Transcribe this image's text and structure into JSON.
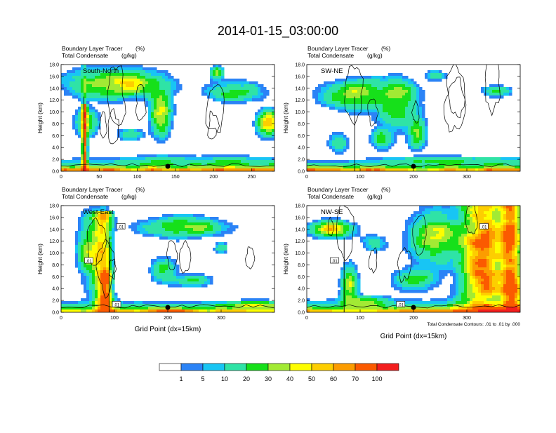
{
  "title": "2014-01-15_03:00:00",
  "colors": {
    "bins": [
      "#ffffff",
      "#2b83f6",
      "#18c5f4",
      "#2fe3a6",
      "#16e01a",
      "#a2ea34",
      "#fdfd00",
      "#fdce00",
      "#fc9c00",
      "#fb5a00",
      "#f31e1e"
    ],
    "contour": "#000000"
  },
  "legend": {
    "labels": [
      "1",
      "5",
      "10",
      "20",
      "30",
      "40",
      "50",
      "60",
      "70",
      "100"
    ]
  },
  "chart_data": [
    {
      "type": "heatmap",
      "field_label": "Boundary Layer Tracer",
      "field_unit": "(%)",
      "contour_label": "Total Condensate",
      "contour_unit": "(g/kg)",
      "panel_label": "South-North",
      "ylabel": "Height (km)",
      "xlabel": "",
      "xlim": [
        0,
        280
      ],
      "ylim": [
        0,
        18
      ],
      "xticks": [
        "0",
        "50",
        "100",
        "150",
        "200",
        "250"
      ],
      "yticks": [
        "0.0",
        "2.0",
        "4.0",
        "6.0",
        "8.0",
        "10.0",
        "12.0",
        "14.0",
        "16.0",
        "18.0"
      ],
      "marker_x": 140,
      "tower_x": 30,
      "contour_values": []
    },
    {
      "type": "heatmap",
      "field_label": "Boundary Layer Tracer",
      "field_unit": "(%)",
      "contour_label": "Total Condensate",
      "contour_unit": "(g/kg)",
      "panel_label": "SW-NE",
      "ylabel": "Height (km)",
      "xlabel": "",
      "xlim": [
        0,
        400
      ],
      "ylim": [
        0,
        18
      ],
      "xticks": [
        "0",
        "100",
        "200",
        "300"
      ],
      "yticks": [
        "0.0",
        "2.0",
        "4.0",
        "6.0",
        "8.0",
        "10.0",
        "12.0",
        "14.0",
        "16.0",
        "18.0"
      ],
      "marker_x": 200,
      "tower_x": 90,
      "contour_values": []
    },
    {
      "type": "heatmap",
      "field_label": "Boundary Layer Tracer",
      "field_unit": "(%)",
      "contour_label": "Total Condensate",
      "contour_unit": "(g/kg)",
      "panel_label": "West-East",
      "ylabel": "Height (km)",
      "xlabel": "Grid Point (dx=15km)",
      "xlim": [
        0,
        400
      ],
      "ylim": [
        0,
        18
      ],
      "xticks": [
        "0",
        "100",
        "200",
        "300"
      ],
      "yticks": [
        "0.0",
        "2.0",
        "4.0",
        "6.0",
        "8.0",
        "10.0",
        "12.0",
        "14.0",
        "16.0",
        "18.0"
      ],
      "marker_x": 200,
      "tower_x": 90,
      "contour_values": [
        ".01",
        ".01",
        ".01"
      ]
    },
    {
      "type": "heatmap",
      "field_label": "Boundary Layer Tracer",
      "field_unit": "(%)",
      "contour_label": "Total Condensate",
      "contour_unit": "(g/kg)",
      "panel_label": "NW-SE",
      "ylabel": "Height (km)",
      "xlabel": "Grid Point (dx=15km)",
      "xlim": [
        0,
        400
      ],
      "ylim": [
        0,
        18
      ],
      "xticks": [
        "0",
        "100",
        "200",
        "300"
      ],
      "yticks": [
        "0.0",
        "2.0",
        "4.0",
        "6.0",
        "8.0",
        "10.0",
        "12.0",
        "14.0",
        "16.0",
        "18.0"
      ],
      "marker_x": 200,
      "tower_x": 70,
      "contour_values": [
        ".01",
        ".01",
        ".01"
      ],
      "footnote": "Total Condensate Contours: .01 to .01 by .000"
    }
  ]
}
